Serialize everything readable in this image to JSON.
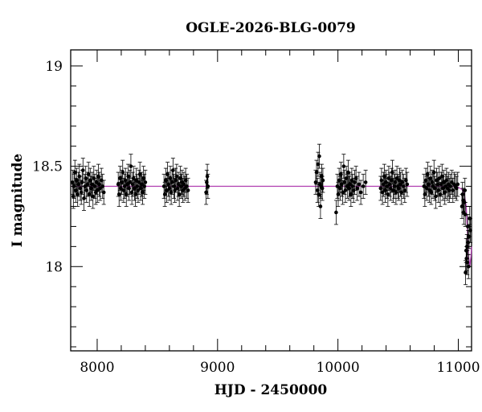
{
  "chart_data": {
    "type": "scatter",
    "title": "OGLE-2026-BLG-0079",
    "xlabel": "HJD - 2450000",
    "ylabel": "I magnitude",
    "xlim": [
      7780,
      11110
    ],
    "ylim": [
      19.08,
      17.58
    ],
    "y_inverted": true,
    "x_ticks": [
      8000,
      9000,
      10000,
      11000
    ],
    "x_tick_labels": [
      "8000",
      "9000",
      "10000",
      "11000"
    ],
    "y_ticks": [
      18,
      18.5,
      19
    ],
    "y_tick_labels": [
      "18",
      "18.5",
      "19"
    ],
    "grid": false,
    "legend": "none",
    "colors": {
      "points": "#000000",
      "model": "#b03cb0"
    },
    "series": [
      {
        "points": [
          [
            7795,
            18.42
          ],
          [
            7802,
            18.35
          ],
          [
            7808,
            18.4
          ],
          [
            7815,
            18.47
          ],
          [
            7822,
            18.38
          ],
          [
            7830,
            18.43
          ],
          [
            7838,
            18.36
          ],
          [
            7845,
            18.41
          ],
          [
            7852,
            18.45
          ],
          [
            7860,
            18.39
          ],
          [
            7868,
            18.37
          ],
          [
            7875,
            18.42
          ],
          [
            7882,
            18.48
          ],
          [
            7890,
            18.34
          ],
          [
            7898,
            18.4
          ],
          [
            7905,
            18.44
          ],
          [
            7912,
            18.38
          ],
          [
            7920,
            18.41
          ],
          [
            7928,
            18.46
          ],
          [
            7935,
            18.36
          ],
          [
            7942,
            18.43
          ],
          [
            7950,
            18.39
          ],
          [
            7958,
            18.41
          ],
          [
            7965,
            18.35
          ],
          [
            7972,
            18.44
          ],
          [
            7980,
            18.4
          ],
          [
            7988,
            18.37
          ],
          [
            7995,
            18.42
          ],
          [
            8002,
            18.38
          ],
          [
            8010,
            18.45
          ],
          [
            8018,
            18.41
          ],
          [
            8025,
            18.39
          ],
          [
            8035,
            18.43
          ],
          [
            8045,
            18.4
          ],
          [
            8055,
            18.37
          ],
          [
            8175,
            18.41
          ],
          [
            8182,
            18.36
          ],
          [
            8190,
            18.44
          ],
          [
            8198,
            18.39
          ],
          [
            8205,
            18.42
          ],
          [
            8212,
            18.47
          ],
          [
            8220,
            18.38
          ],
          [
            8228,
            18.4
          ],
          [
            8235,
            18.43
          ],
          [
            8242,
            18.36
          ],
          [
            8250,
            18.41
          ],
          [
            8258,
            18.45
          ],
          [
            8265,
            18.39
          ],
          [
            8272,
            18.42
          ],
          [
            8280,
            18.5
          ],
          [
            8288,
            18.37
          ],
          [
            8295,
            18.41
          ],
          [
            8302,
            18.44
          ],
          [
            8310,
            18.39
          ],
          [
            8318,
            18.36
          ],
          [
            8325,
            18.43
          ],
          [
            8332,
            18.4
          ],
          [
            8340,
            18.38
          ],
          [
            8348,
            18.42
          ],
          [
            8355,
            18.46
          ],
          [
            8362,
            18.39
          ],
          [
            8370,
            18.41
          ],
          [
            8378,
            18.37
          ],
          [
            8385,
            18.44
          ],
          [
            8392,
            18.4
          ],
          [
            8400,
            18.42
          ],
          [
            8555,
            18.4
          ],
          [
            8562,
            18.36
          ],
          [
            8570,
            18.43
          ],
          [
            8578,
            18.38
          ],
          [
            8585,
            18.46
          ],
          [
            8592,
            18.41
          ],
          [
            8600,
            18.39
          ],
          [
            8608,
            18.44
          ],
          [
            8615,
            18.37
          ],
          [
            8622,
            18.42
          ],
          [
            8630,
            18.48
          ],
          [
            8638,
            18.4
          ],
          [
            8645,
            18.38
          ],
          [
            8652,
            18.43
          ],
          [
            8660,
            18.45
          ],
          [
            8668,
            18.39
          ],
          [
            8675,
            18.41
          ],
          [
            8682,
            18.36
          ],
          [
            8690,
            18.44
          ],
          [
            8698,
            18.4
          ],
          [
            8705,
            18.42
          ],
          [
            8712,
            18.38
          ],
          [
            8720,
            18.41
          ],
          [
            8728,
            18.39
          ],
          [
            8735,
            18.43
          ],
          [
            8745,
            18.4
          ],
          [
            8755,
            18.38
          ],
          [
            8905,
            18.37
          ],
          [
            8910,
            18.42
          ],
          [
            8915,
            18.45
          ],
          [
            8920,
            18.4
          ],
          [
            9815,
            18.42
          ],
          [
            9822,
            18.47
          ],
          [
            9830,
            18.38
          ],
          [
            9835,
            18.51
          ],
          [
            9840,
            18.36
          ],
          [
            9845,
            18.55
          ],
          [
            9850,
            18.41
          ],
          [
            9855,
            18.3
          ],
          [
            9860,
            18.4
          ],
          [
            9865,
            18.45
          ],
          [
            9870,
            18.39
          ],
          [
            9875,
            18.43
          ],
          [
            9985,
            18.27
          ],
          [
            9995,
            18.4
          ],
          [
            10002,
            18.36
          ],
          [
            10010,
            18.43
          ],
          [
            10018,
            18.39
          ],
          [
            10025,
            18.46
          ],
          [
            10032,
            18.41
          ],
          [
            10040,
            18.37
          ],
          [
            10048,
            18.5
          ],
          [
            10055,
            18.42
          ],
          [
            10062,
            18.38
          ],
          [
            10070,
            18.44
          ],
          [
            10078,
            18.4
          ],
          [
            10085,
            18.47
          ],
          [
            10092,
            18.39
          ],
          [
            10100,
            18.41
          ],
          [
            10108,
            18.36
          ],
          [
            10115,
            18.43
          ],
          [
            10122,
            18.4
          ],
          [
            10130,
            18.38
          ],
          [
            10140,
            18.42
          ],
          [
            10150,
            18.44
          ],
          [
            10160,
            18.39
          ],
          [
            10175,
            18.41
          ],
          [
            10190,
            18.37
          ],
          [
            10210,
            18.4
          ],
          [
            10230,
            18.42
          ],
          [
            10355,
            18.39
          ],
          [
            10362,
            18.43
          ],
          [
            10370,
            18.37
          ],
          [
            10378,
            18.41
          ],
          [
            10385,
            18.45
          ],
          [
            10392,
            18.38
          ],
          [
            10400,
            18.42
          ],
          [
            10408,
            18.4
          ],
          [
            10415,
            18.36
          ],
          [
            10422,
            18.44
          ],
          [
            10430,
            18.41
          ],
          [
            10438,
            18.39
          ],
          [
            10445,
            18.43
          ],
          [
            10452,
            18.47
          ],
          [
            10460,
            18.38
          ],
          [
            10468,
            18.4
          ],
          [
            10475,
            18.42
          ],
          [
            10482,
            18.37
          ],
          [
            10490,
            18.44
          ],
          [
            10498,
            18.4
          ],
          [
            10505,
            18.39
          ],
          [
            10512,
            18.43
          ],
          [
            10520,
            18.41
          ],
          [
            10528,
            18.37
          ],
          [
            10535,
            18.42
          ],
          [
            10545,
            18.4
          ],
          [
            10555,
            18.38
          ],
          [
            10565,
            18.43
          ],
          [
            10575,
            18.41
          ],
          [
            10715,
            18.4
          ],
          [
            10722,
            18.36
          ],
          [
            10730,
            18.43
          ],
          [
            10738,
            18.39
          ],
          [
            10745,
            18.46
          ],
          [
            10752,
            18.41
          ],
          [
            10760,
            18.38
          ],
          [
            10768,
            18.44
          ],
          [
            10775,
            18.37
          ],
          [
            10782,
            18.42
          ],
          [
            10790,
            18.4
          ],
          [
            10798,
            18.47
          ],
          [
            10805,
            18.39
          ],
          [
            10812,
            18.35
          ],
          [
            10820,
            18.43
          ],
          [
            10828,
            18.41
          ],
          [
            10835,
            18.38
          ],
          [
            10842,
            18.44
          ],
          [
            10850,
            18.36
          ],
          [
            10858,
            18.41
          ],
          [
            10865,
            18.45
          ],
          [
            10872,
            18.39
          ],
          [
            10880,
            18.42
          ],
          [
            10888,
            18.37
          ],
          [
            10895,
            18.4
          ],
          [
            10902,
            18.43
          ],
          [
            10910,
            18.39
          ],
          [
            10918,
            18.41
          ],
          [
            10925,
            18.38
          ],
          [
            10935,
            18.4
          ],
          [
            10945,
            18.42
          ],
          [
            10955,
            18.38
          ],
          [
            10965,
            18.41
          ],
          [
            10975,
            18.4
          ],
          [
            10985,
            18.39
          ],
          [
            10995,
            18.41
          ],
          [
            11030,
            18.3
          ],
          [
            11035,
            18.36
          ],
          [
            11040,
            18.33
          ],
          [
            11045,
            18.27
          ],
          [
            11050,
            18.32
          ],
          [
            11055,
            18.38
          ],
          [
            11058,
            18.26
          ],
          [
            11060,
            17.97
          ],
          [
            11065,
            18.08
          ],
          [
            11068,
            18.04
          ],
          [
            11072,
            18.1
          ],
          [
            11075,
            18.02
          ],
          [
            11078,
            18.2
          ],
          [
            11082,
            18.12
          ],
          [
            11085,
            18.0
          ],
          [
            11090,
            18.15
          ],
          [
            11095,
            18.24
          ],
          [
            11100,
            18.18
          ]
        ],
        "yerr": 0.06
      }
    ],
    "model_line": {
      "x": [
        7780,
        10950,
        11000,
        11030,
        11050,
        11065,
        11075,
        11085,
        11095,
        11105,
        11110
      ],
      "y": [
        18.4,
        18.4,
        18.395,
        18.385,
        18.36,
        18.3,
        18.18,
        18.05,
        18.0,
        18.05,
        18.1
      ]
    }
  }
}
